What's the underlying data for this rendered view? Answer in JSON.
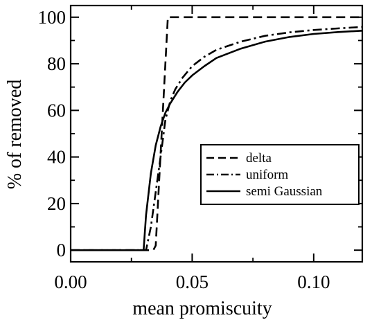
{
  "chart_data": {
    "type": "line",
    "title": "",
    "xlabel": "mean promiscuity",
    "ylabel": "% of removed",
    "xlim": [
      0.0,
      0.12
    ],
    "ylim": [
      -5,
      105
    ],
    "x_ticks": [
      0.0,
      0.05,
      0.1
    ],
    "x_tick_labels": [
      "0.00",
      "0.05",
      "0.10"
    ],
    "x_minor_ticks": [
      0.025,
      0.075
    ],
    "y_ticks": [
      0,
      20,
      40,
      60,
      80,
      100
    ],
    "y_tick_labels": [
      "0",
      "20",
      "40",
      "60",
      "80",
      "100"
    ],
    "y_minor_ticks": [
      10,
      30,
      50,
      70,
      90
    ],
    "grid": false,
    "legend_position": "center-right",
    "series": [
      {
        "name": "delta",
        "style": "dashed",
        "color": "#000000",
        "x": [
          0.0,
          0.034,
          0.035,
          0.04,
          0.12
        ],
        "y": [
          0,
          0,
          2,
          100,
          100
        ]
      },
      {
        "name": "uniform",
        "style": "dash-dot",
        "color": "#000000",
        "x": [
          0.0,
          0.031,
          0.033,
          0.035,
          0.037,
          0.039,
          0.041,
          0.043,
          0.046,
          0.05,
          0.055,
          0.06,
          0.07,
          0.08,
          0.09,
          0.1,
          0.11,
          0.12
        ],
        "y": [
          0,
          0,
          10,
          25,
          40,
          56,
          64,
          69,
          74,
          79,
          83,
          86,
          89.5,
          92,
          93.5,
          94.5,
          95.2,
          95.8
        ]
      },
      {
        "name": "semi Gaussian",
        "style": "solid",
        "color": "#000000",
        "x": [
          0.0,
          0.03,
          0.031,
          0.033,
          0.035,
          0.037,
          0.039,
          0.041,
          0.044,
          0.047,
          0.05,
          0.055,
          0.06,
          0.07,
          0.08,
          0.09,
          0.1,
          0.11,
          0.12
        ],
        "y": [
          0,
          0,
          15,
          33,
          45,
          53,
          59,
          63,
          68,
          72,
          75,
          79,
          82.5,
          86.5,
          89.5,
          91.5,
          92.8,
          93.6,
          94.2
        ]
      }
    ]
  }
}
